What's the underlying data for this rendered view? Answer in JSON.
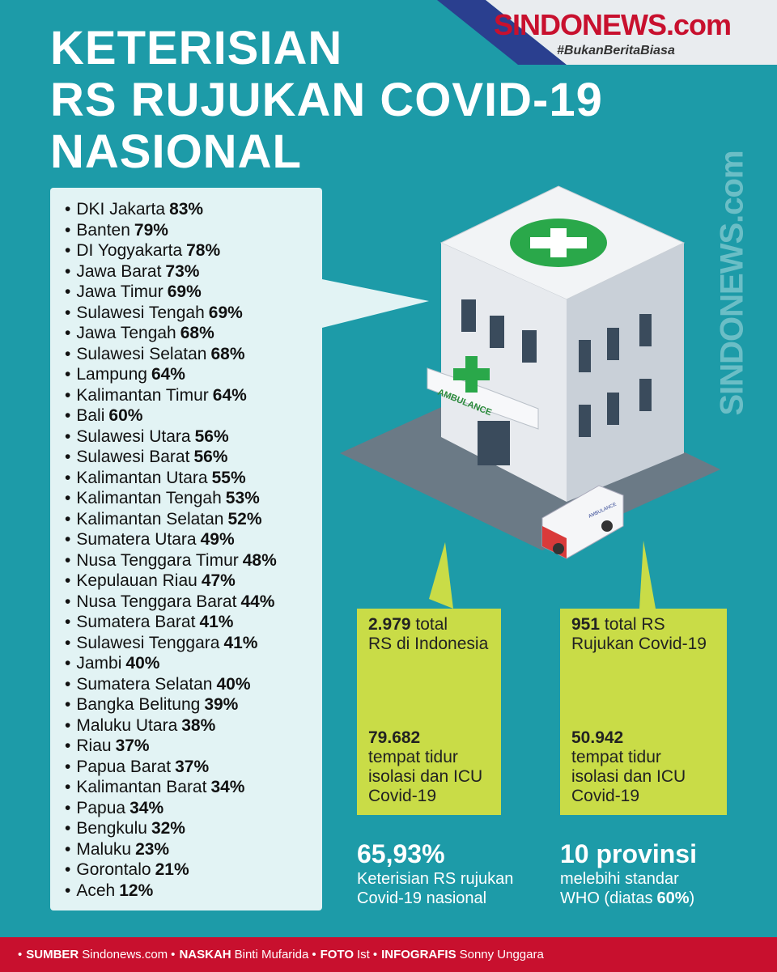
{
  "brand": {
    "name": "SINDONEWS.com",
    "tagline": "#BukanBeritaBiasa",
    "watermark": "SINDONEWS.com"
  },
  "header": {
    "title": [
      "KETERISIAN",
      "RS RUJUKAN COVID-19",
      "NASIONAL"
    ]
  },
  "provinces": [
    {
      "name": "DKI Jakarta",
      "pct": "83%"
    },
    {
      "name": "Banten",
      "pct": "79%"
    },
    {
      "name": "DI Yogyakarta",
      "pct": "78%"
    },
    {
      "name": "Jawa Barat",
      "pct": "73%"
    },
    {
      "name": "Jawa Timur",
      "pct": "69%"
    },
    {
      "name": "Sulawesi Tengah",
      "pct": "69%"
    },
    {
      "name": "Jawa Tengah",
      "pct": "68%"
    },
    {
      "name": "Sulawesi Selatan",
      "pct": "68%"
    },
    {
      "name": "Lampung",
      "pct": "64%"
    },
    {
      "name": "Kalimantan Timur",
      "pct": "64%"
    },
    {
      "name": "Bali",
      "pct": "60%"
    },
    {
      "name": "Sulawesi Utara",
      "pct": "56%"
    },
    {
      "name": "Sulawesi Barat",
      "pct": "56%"
    },
    {
      "name": "Kalimantan Utara",
      "pct": "55%"
    },
    {
      "name": "Kalimantan Tengah",
      "pct": "53%"
    },
    {
      "name": "Kalimantan Selatan",
      "pct": "52%"
    },
    {
      "name": "Sumatera Utara",
      "pct": "49%"
    },
    {
      "name": "Nusa Tenggara Timur",
      "pct": "48%"
    },
    {
      "name": "Kepulauan Riau",
      "pct": "47%"
    },
    {
      "name": "Nusa Tenggara Barat",
      "pct": "44%"
    },
    {
      "name": "Sumatera Barat",
      "pct": "41%"
    },
    {
      "name": "Sulawesi Tenggara",
      "pct": "41%"
    },
    {
      "name": "Jambi",
      "pct": "40%"
    },
    {
      "name": "Sumatera Selatan",
      "pct": "40%"
    },
    {
      "name": "Bangka Belitung",
      "pct": "39%"
    },
    {
      "name": "Maluku Utara",
      "pct": "38%"
    },
    {
      "name": "Riau",
      "pct": "37%"
    },
    {
      "name": "Papua Barat",
      "pct": "37%"
    },
    {
      "name": "Kalimantan Barat",
      "pct": "34%"
    },
    {
      "name": "Papua",
      "pct": "34%"
    },
    {
      "name": "Bengkulu",
      "pct": "32%"
    },
    {
      "name": "Maluku",
      "pct": "23%"
    },
    {
      "name": "Gorontalo",
      "pct": "21%"
    },
    {
      "name": "Aceh",
      "pct": "12%"
    }
  ],
  "illustration": {
    "sign": "AMBULANCE",
    "vehicle": "AMBULANCE"
  },
  "boxes": [
    {
      "number": "2.979",
      "unit": "total",
      "line2": "RS di Indonesia",
      "beds": "79.682",
      "beds_text": [
        "tempat tidur",
        "isolasi dan ICU",
        "Covid-19"
      ]
    },
    {
      "number": "951",
      "unit": "total RS",
      "line2": "Rujukan Covid-19",
      "beds": "50.942",
      "beds_text": [
        "tempat tidur",
        "isolasi dan ICU",
        "Covid-19"
      ]
    }
  ],
  "stats": [
    {
      "value": "65,93%",
      "lines": [
        "Keterisian RS rujukan",
        "Covid-19 nasional"
      ]
    },
    {
      "value": "10 provinsi",
      "lines": [
        "melebihi standar",
        "WHO (diatas"
      ],
      "bold": "60%",
      "end": ")"
    }
  ],
  "credits": [
    {
      "label": "SUMBER",
      "value": "Sindonews.com"
    },
    {
      "label": "NASKAH",
      "value": "Binti Mufarida"
    },
    {
      "label": "FOTO",
      "value": "Ist"
    },
    {
      "label": "INFOGRAFIS",
      "value": "Sonny Unggara"
    }
  ]
}
